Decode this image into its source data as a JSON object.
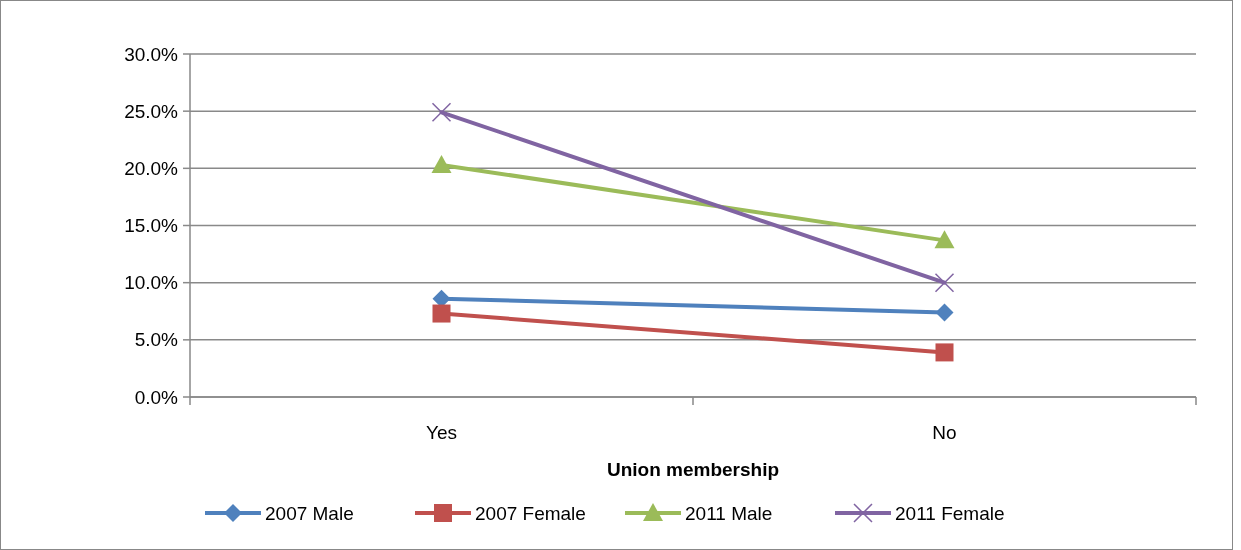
{
  "chart_data": {
    "type": "line",
    "xlabel": "Union membership",
    "categories": [
      "Yes",
      "No"
    ],
    "series": [
      {
        "name": "2007 Male",
        "color": "#4f81bd",
        "marker": "diamond",
        "values": [
          8.6,
          7.4
        ]
      },
      {
        "name": "2007 Female",
        "color": "#c0504d",
        "marker": "square",
        "values": [
          7.3,
          3.9
        ]
      },
      {
        "name": "2011 Male",
        "color": "#9bbb59",
        "marker": "triangle",
        "values": [
          20.3,
          13.7
        ]
      },
      {
        "name": "2011 Female",
        "color": "#8064a2",
        "marker": "cross",
        "values": [
          24.9,
          10.0
        ]
      }
    ],
    "ylim": [
      0,
      30
    ],
    "yticks": [
      {
        "value": 0,
        "label": "0.0%"
      },
      {
        "value": 5,
        "label": "5.0%"
      },
      {
        "value": 10,
        "label": "10.0%"
      },
      {
        "value": 15,
        "label": "15.0%"
      },
      {
        "value": 20,
        "label": "20.0%"
      },
      {
        "value": 25,
        "label": "25.0%"
      },
      {
        "value": 30,
        "label": "30.0%"
      }
    ],
    "grid": "y",
    "legend": "bottom",
    "line_style": "solid"
  }
}
